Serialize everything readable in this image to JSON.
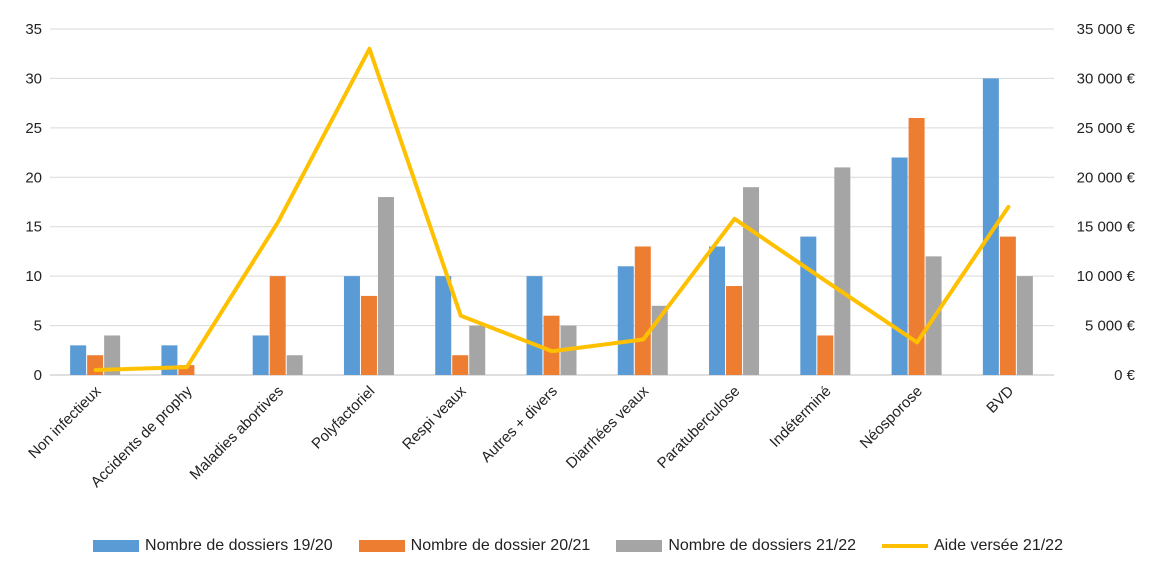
{
  "chart_data": {
    "type": "bar",
    "categories": [
      "Non infectieux",
      "Accidents de prophy",
      "Maladies abortives",
      "Polyfactoriel",
      "Respi veaux",
      "Autres + divers",
      "Diarrhées veaux",
      "Paratuberculose",
      "Indéterminé",
      "Néosporose",
      "BVD"
    ],
    "series": [
      {
        "name": "Nombre de dossiers 19/20",
        "type": "bar",
        "axis": "left",
        "color": "#5b9bd5",
        "values": [
          3,
          3,
          4,
          10,
          10,
          10,
          11,
          13,
          14,
          22,
          30
        ]
      },
      {
        "name": "Nombre de dossier 20/21",
        "type": "bar",
        "axis": "left",
        "color": "#ed7d31",
        "values": [
          2,
          1,
          10,
          8,
          2,
          6,
          13,
          9,
          4,
          26,
          14
        ]
      },
      {
        "name": "Nombre de dossiers 21/22",
        "type": "bar",
        "axis": "left",
        "color": "#a5a5a5",
        "values": [
          4,
          0,
          2,
          18,
          5,
          5,
          7,
          19,
          21,
          12,
          10
        ]
      },
      {
        "name": "Aide versée 21/22",
        "type": "line",
        "axis": "right",
        "color": "#ffc000",
        "values": [
          500,
          800,
          15500,
          33000,
          6000,
          2400,
          3600,
          15800,
          9500,
          3300,
          17000
        ]
      }
    ],
    "y_left": {
      "min": 0,
      "max": 35,
      "step": 5,
      "ticks": [
        "0",
        "5",
        "10",
        "15",
        "20",
        "25",
        "30",
        "35"
      ]
    },
    "y_right": {
      "min": 0,
      "max": 35000,
      "step": 5000,
      "ticks": [
        "0 €",
        "5 000 €",
        "10 000 €",
        "15 000 €",
        "20 000 €",
        "25 000 €",
        "30 000 €",
        "35 000 €"
      ]
    },
    "grid": true,
    "legend_position": "bottom"
  }
}
